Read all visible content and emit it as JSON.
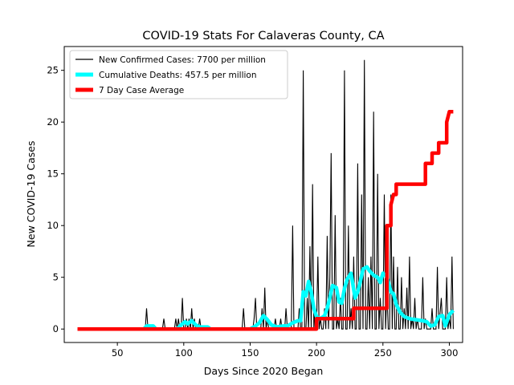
{
  "chart_data": {
    "type": "line",
    "title": "COVID-19 Stats For Calaveras County, CA",
    "xlabel": "Days Since 2020 Began",
    "ylabel": "New COVID-19 Cases",
    "xlim": [
      10,
      310
    ],
    "ylim": [
      -1.3,
      27.3
    ],
    "xticks": [
      50,
      100,
      150,
      200,
      250,
      300
    ],
    "yticks": [
      0,
      5,
      10,
      15,
      20,
      25
    ],
    "grid": false,
    "legend_position": "top-left",
    "series": [
      {
        "name": "New Confirmed Cases: 7700 per million",
        "color": "#000000",
        "style": "thin",
        "points": [
          [
            20,
            0
          ],
          [
            71,
            0
          ],
          [
            72,
            2
          ],
          [
            73,
            0
          ],
          [
            84,
            0
          ],
          [
            85,
            1
          ],
          [
            86,
            0
          ],
          [
            93,
            0
          ],
          [
            94,
            1
          ],
          [
            95,
            0
          ],
          [
            96,
            1
          ],
          [
            97,
            0
          ],
          [
            98,
            0
          ],
          [
            99,
            3
          ],
          [
            100,
            0
          ],
          [
            101,
            0
          ],
          [
            102,
            1
          ],
          [
            103,
            0
          ],
          [
            104,
            1
          ],
          [
            105,
            0
          ],
          [
            106,
            2
          ],
          [
            107,
            0
          ],
          [
            108,
            1
          ],
          [
            109,
            0
          ],
          [
            111,
            0
          ],
          [
            112,
            1
          ],
          [
            113,
            0
          ],
          [
            144,
            0
          ],
          [
            145,
            2
          ],
          [
            146,
            0
          ],
          [
            152,
            0
          ],
          [
            153,
            1
          ],
          [
            154,
            3
          ],
          [
            155,
            0
          ],
          [
            158,
            0
          ],
          [
            159,
            2
          ],
          [
            160,
            0
          ],
          [
            161,
            4
          ],
          [
            162,
            0
          ],
          [
            163,
            1
          ],
          [
            164,
            0
          ],
          [
            168,
            0
          ],
          [
            169,
            1
          ],
          [
            170,
            0
          ],
          [
            172,
            0
          ],
          [
            173,
            1
          ],
          [
            174,
            0
          ],
          [
            176,
            0
          ],
          [
            177,
            2
          ],
          [
            178,
            0
          ],
          [
            181,
            0
          ],
          [
            182,
            10
          ],
          [
            183,
            0
          ],
          [
            186,
            0
          ],
          [
            187,
            2
          ],
          [
            188,
            0
          ],
          [
            189,
            0
          ],
          [
            190,
            25
          ],
          [
            191,
            0
          ],
          [
            192,
            0
          ],
          [
            193,
            3
          ],
          [
            194,
            0
          ],
          [
            195,
            8
          ],
          [
            196,
            0
          ],
          [
            197,
            14
          ],
          [
            198,
            0
          ],
          [
            199,
            2
          ],
          [
            200,
            0
          ],
          [
            201,
            7
          ],
          [
            202,
            0
          ],
          [
            203,
            1
          ],
          [
            204,
            0
          ],
          [
            205,
            0
          ],
          [
            206,
            2
          ],
          [
            207,
            0
          ],
          [
            208,
            9
          ],
          [
            209,
            0
          ],
          [
            210,
            5
          ],
          [
            211,
            17
          ],
          [
            212,
            0
          ],
          [
            213,
            0
          ],
          [
            214,
            11
          ],
          [
            215,
            0
          ],
          [
            216,
            1
          ],
          [
            217,
            0
          ],
          [
            218,
            3
          ],
          [
            219,
            0
          ],
          [
            220,
            0
          ],
          [
            221,
            25
          ],
          [
            222,
            0
          ],
          [
            223,
            0
          ],
          [
            224,
            10
          ],
          [
            225,
            0
          ],
          [
            226,
            2
          ],
          [
            227,
            0
          ],
          [
            228,
            7
          ],
          [
            229,
            0
          ],
          [
            230,
            0
          ],
          [
            231,
            16
          ],
          [
            232,
            0
          ],
          [
            233,
            0
          ],
          [
            234,
            13
          ],
          [
            235,
            0
          ],
          [
            236,
            26
          ],
          [
            237,
            0
          ],
          [
            238,
            0
          ],
          [
            239,
            5
          ],
          [
            240,
            0
          ],
          [
            241,
            7
          ],
          [
            242,
            0
          ],
          [
            243,
            21
          ],
          [
            244,
            0
          ],
          [
            245,
            0
          ],
          [
            246,
            15
          ],
          [
            247,
            0
          ],
          [
            248,
            3
          ],
          [
            249,
            0
          ],
          [
            250,
            0
          ],
          [
            251,
            13
          ],
          [
            252,
            0
          ],
          [
            253,
            4
          ],
          [
            254,
            0
          ],
          [
            255,
            0
          ],
          [
            256,
            13
          ],
          [
            257,
            0
          ],
          [
            258,
            7
          ],
          [
            259,
            0
          ],
          [
            260,
            0
          ],
          [
            261,
            6
          ],
          [
            262,
            0
          ],
          [
            263,
            0
          ],
          [
            264,
            5
          ],
          [
            265,
            0
          ],
          [
            266,
            2
          ],
          [
            267,
            0
          ],
          [
            268,
            4
          ],
          [
            269,
            0
          ],
          [
            270,
            7
          ],
          [
            271,
            0
          ],
          [
            272,
            1
          ],
          [
            273,
            0
          ],
          [
            274,
            3
          ],
          [
            275,
            0
          ],
          [
            276,
            1
          ],
          [
            277,
            0
          ],
          [
            279,
            0
          ],
          [
            280,
            5
          ],
          [
            281,
            0
          ],
          [
            282,
            1
          ],
          [
            283,
            0
          ],
          [
            286,
            0
          ],
          [
            287,
            2
          ],
          [
            288,
            0
          ],
          [
            290,
            0
          ],
          [
            291,
            6
          ],
          [
            292,
            0
          ],
          [
            294,
            3
          ],
          [
            295,
            0
          ],
          [
            297,
            0
          ],
          [
            298,
            5
          ],
          [
            299,
            0
          ],
          [
            300,
            1
          ],
          [
            301,
            0
          ],
          [
            302,
            7
          ],
          [
            303,
            0
          ]
        ]
      },
      {
        "name": "Cumulative Deaths: 457.5 per million",
        "color": "#00ffff",
        "style": "thick",
        "points": [
          [
            20,
            0
          ],
          [
            70,
            0
          ],
          [
            72,
            0.3
          ],
          [
            77,
            0.3
          ],
          [
            79,
            0
          ],
          [
            95,
            0
          ],
          [
            98,
            0.4
          ],
          [
            101,
            0.7
          ],
          [
            103,
            0.5
          ],
          [
            106,
            0.8
          ],
          [
            109,
            0.4
          ],
          [
            112,
            0.2
          ],
          [
            115,
            0.2
          ],
          [
            118,
            0.2
          ],
          [
            120,
            0
          ],
          [
            145,
            0
          ],
          [
            150,
            0
          ],
          [
            154,
            0.3
          ],
          [
            157,
            0.6
          ],
          [
            160,
            1.3
          ],
          [
            163,
            0.9
          ],
          [
            166,
            0.4
          ],
          [
            170,
            0.2
          ],
          [
            175,
            0.3
          ],
          [
            178,
            0.3
          ],
          [
            182,
            0.6
          ],
          [
            186,
            0.8
          ],
          [
            188,
            0.8
          ],
          [
            190,
            3.6
          ],
          [
            192,
            3.2
          ],
          [
            194,
            4.6
          ],
          [
            196,
            3.6
          ],
          [
            198,
            2.0
          ],
          [
            200,
            1.2
          ],
          [
            203,
            1.0
          ],
          [
            206,
            1.3
          ],
          [
            208,
            2.0
          ],
          [
            210,
            3.0
          ],
          [
            212,
            4.2
          ],
          [
            215,
            4.0
          ],
          [
            217,
            2.6
          ],
          [
            219,
            2.5
          ],
          [
            221,
            3.9
          ],
          [
            223,
            4.8
          ],
          [
            226,
            5.4
          ],
          [
            229,
            3.0
          ],
          [
            231,
            3.6
          ],
          [
            233,
            4.6
          ],
          [
            235,
            5.8
          ],
          [
            238,
            6.0
          ],
          [
            240,
            5.6
          ],
          [
            243,
            5.2
          ],
          [
            246,
            5.0
          ],
          [
            248,
            4.5
          ],
          [
            250,
            5.4
          ],
          [
            252,
            5.2
          ],
          [
            254,
            4.6
          ],
          [
            256,
            3.6
          ],
          [
            258,
            3.4
          ],
          [
            260,
            2.4
          ],
          [
            263,
            1.6
          ],
          [
            266,
            1.2
          ],
          [
            270,
            1.0
          ],
          [
            275,
            0.9
          ],
          [
            280,
            0.8
          ],
          [
            283,
            0.7
          ],
          [
            286,
            0.3
          ],
          [
            289,
            0.4
          ],
          [
            292,
            1.2
          ],
          [
            295,
            1.3
          ],
          [
            297,
            0.3
          ],
          [
            300,
            1.4
          ],
          [
            303,
            1.8
          ]
        ]
      },
      {
        "name": "7 Day Case Average",
        "color": "#ff0000",
        "style": "thick",
        "points": [
          [
            20,
            0
          ],
          [
            200,
            0
          ],
          [
            200,
            1
          ],
          [
            228,
            1
          ],
          [
            228,
            2
          ],
          [
            253,
            2
          ],
          [
            253,
            10
          ],
          [
            256,
            10
          ],
          [
            256,
            12
          ],
          [
            258,
            13
          ],
          [
            260,
            13
          ],
          [
            260,
            14
          ],
          [
            282,
            14
          ],
          [
            282,
            16
          ],
          [
            287,
            16
          ],
          [
            287,
            17
          ],
          [
            292,
            17
          ],
          [
            292,
            18
          ],
          [
            298,
            18
          ],
          [
            298,
            20
          ],
          [
            300,
            21
          ],
          [
            303,
            21
          ]
        ]
      }
    ]
  }
}
